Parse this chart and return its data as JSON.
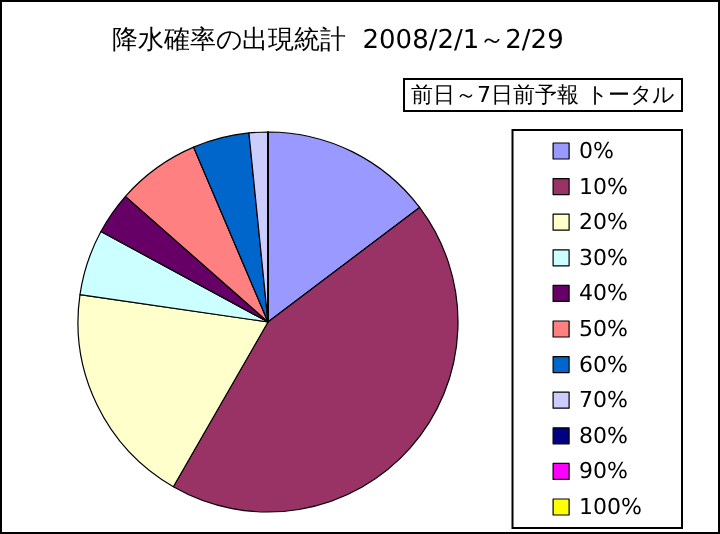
{
  "chart_data": {
    "type": "pie",
    "title": "降水確率の出現統計  2008/2/1～2/29",
    "subtitle": "前日～7日前予報 トータル",
    "categories": [
      "0%",
      "10%",
      "20%",
      "30%",
      "40%",
      "50%",
      "60%",
      "70%",
      "80%",
      "90%",
      "100%"
    ],
    "values": [
      14.7,
      43.6,
      19.0,
      5.6,
      3.6,
      7.1,
      4.8,
      1.6,
      0,
      0,
      0
    ],
    "colors": [
      "#9999ff",
      "#993366",
      "#ffffcc",
      "#ccffff",
      "#660066",
      "#ff8080",
      "#0066cc",
      "#ccccff",
      "#000080",
      "#ff00ff",
      "#ffff00"
    ],
    "legend": "right"
  }
}
